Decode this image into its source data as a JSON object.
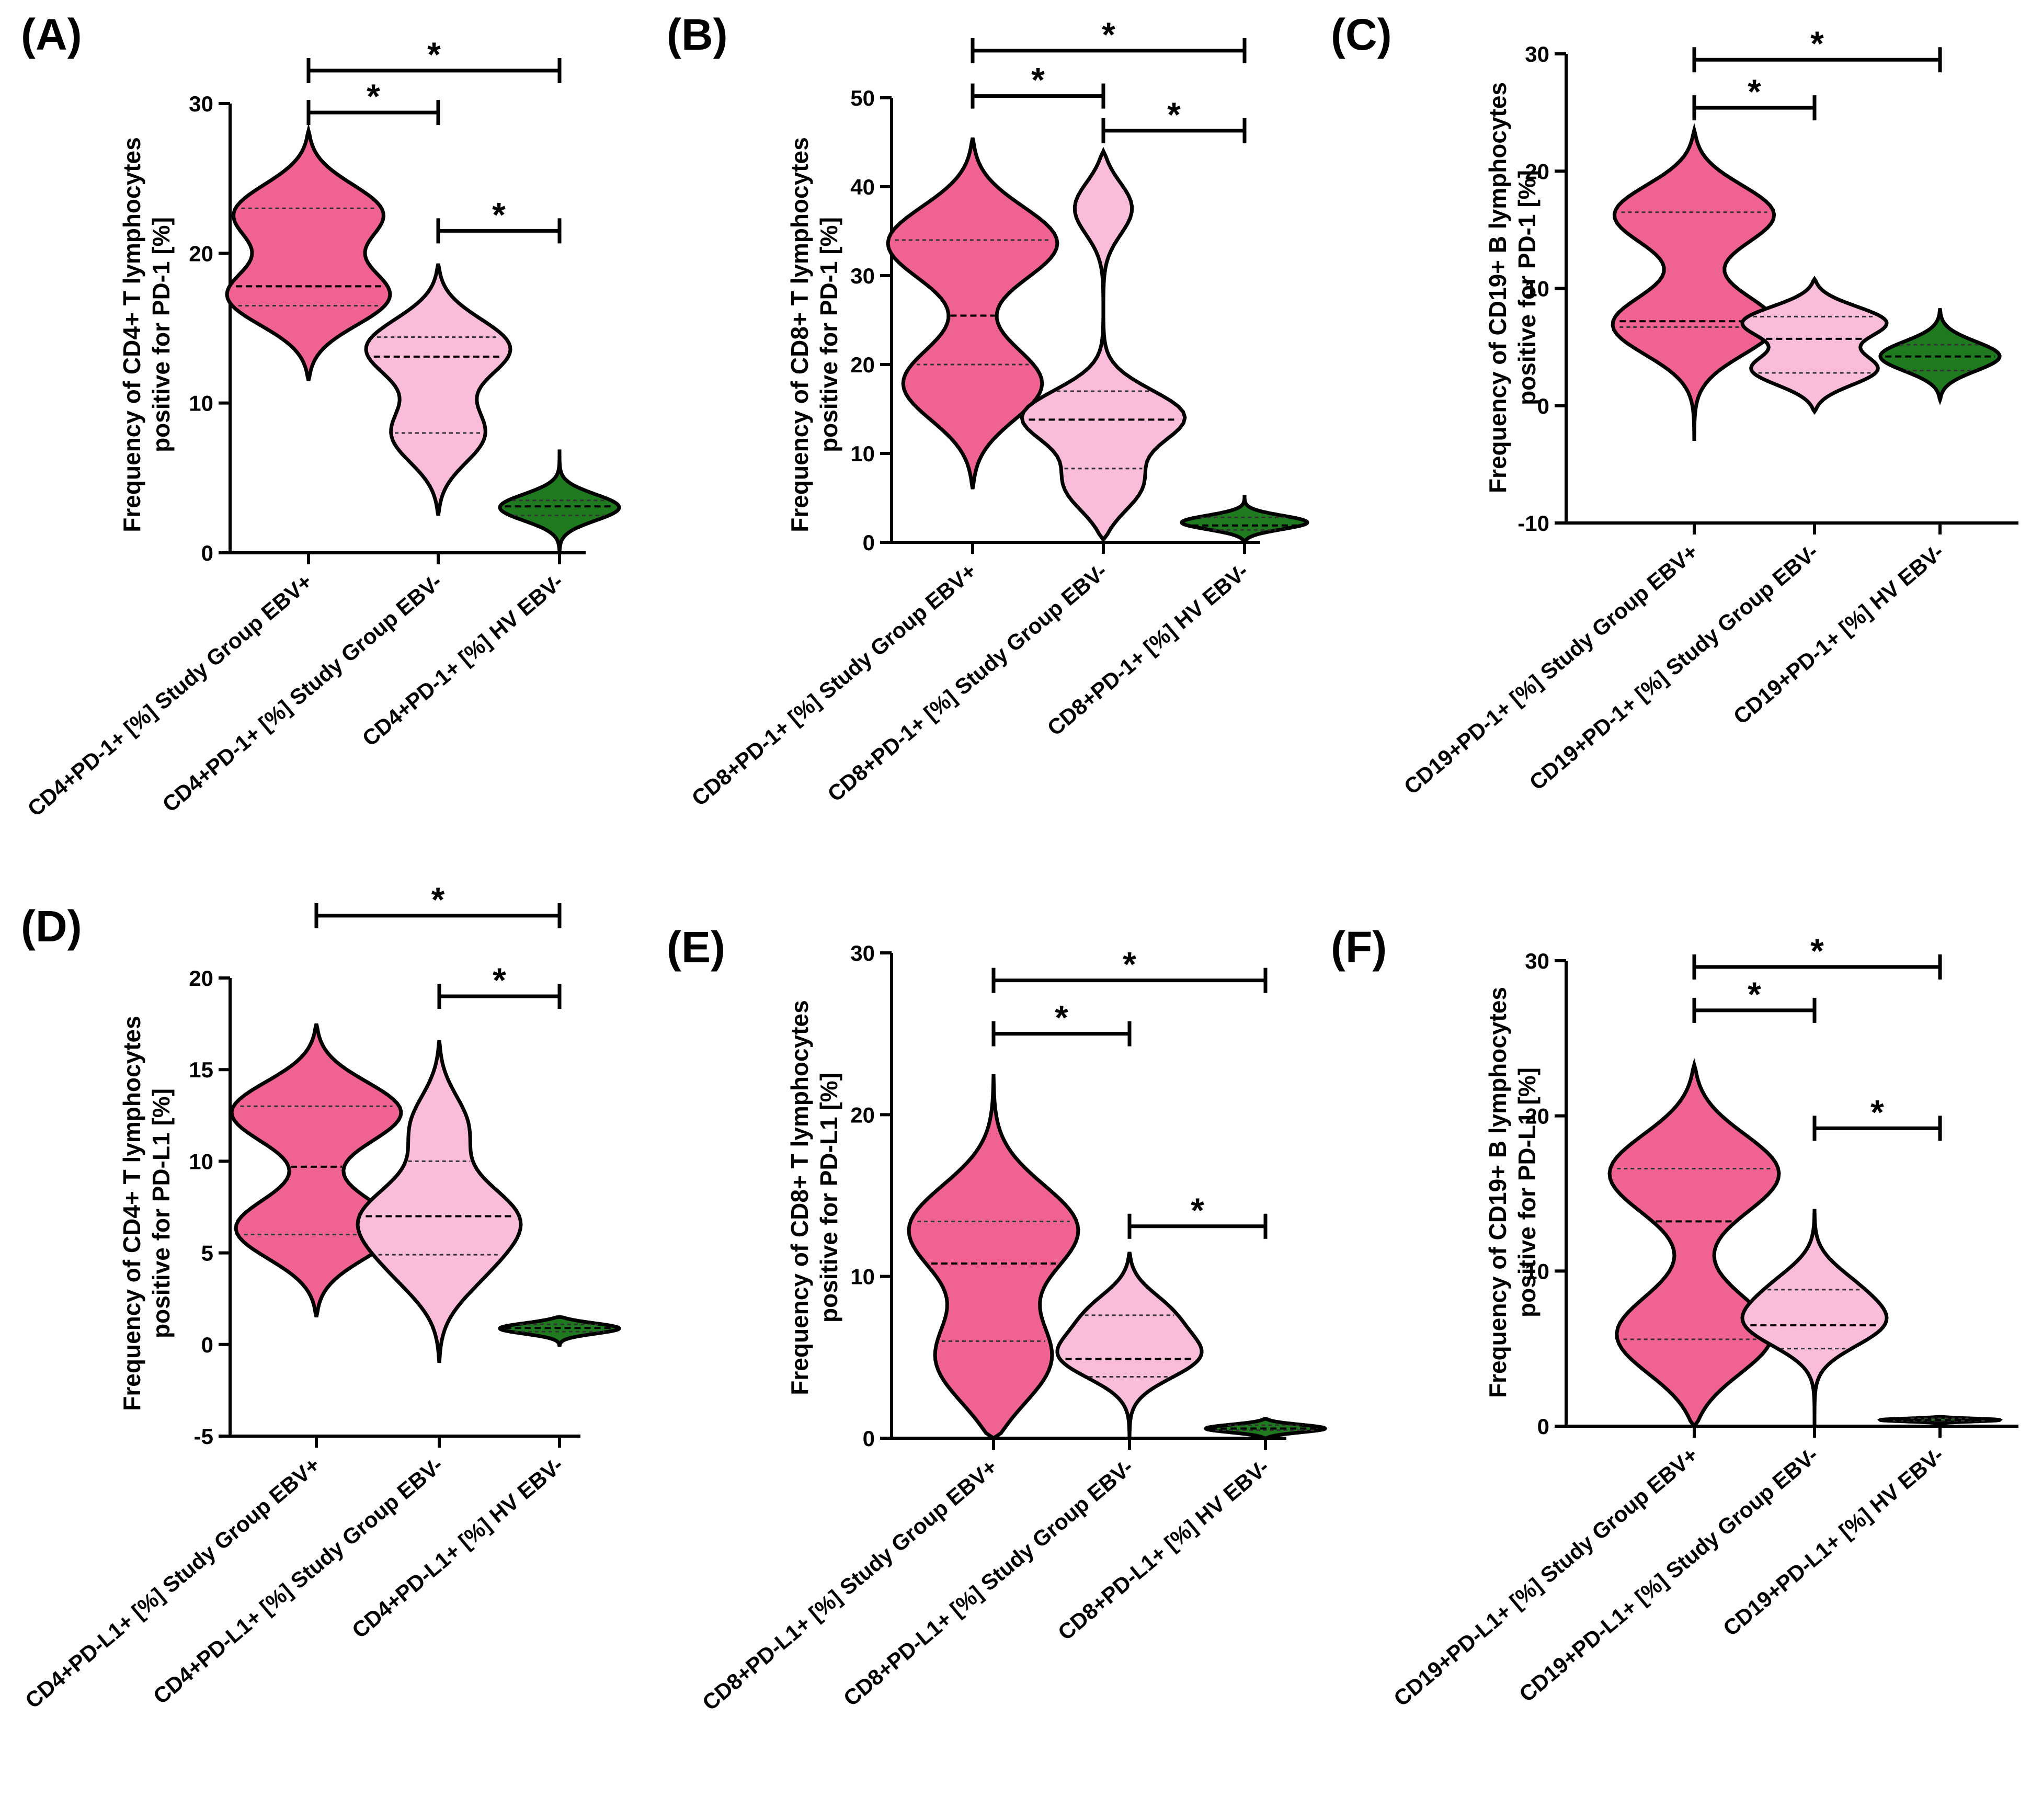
{
  "colors": {
    "ebv_pos": "#f06292",
    "ebv_neg": "#f9bdd9",
    "hv": "#1f7a1f",
    "line": "#000000"
  },
  "chart_data": [
    {
      "type": "violin",
      "id": "A",
      "panel_label": "(A)",
      "ylabel_line1": "Frequency of CD4+ T lymphocytes",
      "ylabel_line2": "positive for PD-1 [%]",
      "ylim": [
        0,
        30
      ],
      "yticks": [
        0,
        10,
        20,
        30
      ],
      "categories": [
        "CD4+PD-1+ [%] Study Group EBV+",
        "CD4+PD-1+ [%] Study Group EBV-",
        "CD4+PD-1+ [%] HV EBV-"
      ],
      "violins": [
        {
          "min": 11.5,
          "max": 28.2,
          "q1": 16.5,
          "median": 17.8,
          "q3": 23.0,
          "max_half_width": 2.6,
          "peaks": [
            [
              17.0,
              1.0
            ],
            [
              22.8,
              0.92
            ]
          ],
          "sigma": 2.0
        },
        {
          "min": 2.5,
          "max": 19.3,
          "q1": 8.0,
          "median": 13.1,
          "q3": 14.4,
          "max_half_width": 2.3,
          "peaks": [
            [
              13.8,
              1.0
            ],
            [
              7.8,
              0.65
            ]
          ],
          "sigma": 2.0
        },
        {
          "min": 0.1,
          "max": 6.9,
          "q1": 2.5,
          "median": 3.1,
          "q3": 3.5,
          "max_half_width": 1.9,
          "peaks": [
            [
              3.0,
              1.0
            ]
          ],
          "sigma": 0.9
        }
      ],
      "significance": [
        {
          "from": 0,
          "to": 2,
          "value": 32.2,
          "label": "*"
        },
        {
          "from": 0,
          "to": 1,
          "value": 29.4,
          "label": "*"
        },
        {
          "from": 1,
          "to": 2,
          "value": 21.5,
          "label": "*"
        }
      ]
    },
    {
      "type": "violin",
      "id": "B",
      "panel_label": "(B)",
      "ylabel_line1": "Frequency of CD8+ T lymphocytes",
      "ylabel_line2": "positive for PD-1 [%]",
      "ylim": [
        0,
        50
      ],
      "yticks": [
        0,
        10,
        20,
        30,
        40,
        50
      ],
      "categories": [
        "CD8+PD-1+ [%] Study Group EBV+",
        "CD8+PD-1+ [%] Study Group EBV-",
        "CD8+PD-1+ [%] HV EBV-"
      ],
      "violins": [
        {
          "min": 6.0,
          "max": 45.5,
          "q1": 20.0,
          "median": 25.5,
          "q3": 34.0,
          "max_half_width": 2.7,
          "peaks": [
            [
              34.0,
              1.0
            ],
            [
              17.5,
              0.82
            ]
          ],
          "sigma": 4.2
        },
        {
          "min": 0.3,
          "max": 44.0,
          "q1": 8.3,
          "median": 13.8,
          "q3": 17.0,
          "max_half_width": 2.6,
          "peaks": [
            [
              14.0,
              1.0
            ],
            [
              6.0,
              0.6
            ],
            [
              38.0,
              0.45
            ]
          ],
          "sigma": 3.0
        },
        {
          "min": 0.1,
          "max": 5.3,
          "q1": 1.4,
          "median": 1.9,
          "q3": 2.8,
          "max_half_width": 2.0,
          "peaks": [
            [
              2.2,
              1.0
            ]
          ],
          "sigma": 0.8
        }
      ],
      "significance": [
        {
          "from": 0,
          "to": 2,
          "value": 55.3,
          "label": "*"
        },
        {
          "from": 0,
          "to": 1,
          "value": 50.2,
          "label": "*"
        },
        {
          "from": 1,
          "to": 2,
          "value": 46.3,
          "label": "*"
        }
      ]
    },
    {
      "type": "violin",
      "id": "C",
      "panel_label": "(C)",
      "ylabel_line1": "Frequency of CD19+ B lymphocytes",
      "ylabel_line2": "positive for PD-1 [%]",
      "ylim": [
        -10,
        30
      ],
      "yticks": [
        -10,
        0,
        10,
        20,
        30
      ],
      "categories": [
        "CD19+PD-1+ [%] Study Group EBV+",
        "CD19+PD-1+ [%] Study Group EBV-",
        "CD19+PD-1+ [%] HV EBV-"
      ],
      "violins": [
        {
          "min": -3.0,
          "max": 23.5,
          "q1": 6.7,
          "median": 7.2,
          "q3": 16.5,
          "max_half_width": 2.6,
          "peaks": [
            [
              16.5,
              1.0
            ],
            [
              6.8,
              0.95
            ]
          ],
          "sigma": 2.6
        },
        {
          "min": -0.5,
          "max": 10.8,
          "q1": 2.8,
          "median": 5.7,
          "q3": 7.6,
          "max_half_width": 2.3,
          "peaks": [
            [
              7.2,
              1.0
            ],
            [
              3.0,
              0.88
            ]
          ],
          "sigma": 1.4
        },
        {
          "min": 0.5,
          "max": 8.3,
          "q1": 3.0,
          "median": 4.2,
          "q3": 5.2,
          "max_half_width": 1.9,
          "peaks": [
            [
              4.2,
              1.0
            ]
          ],
          "sigma": 1.3
        }
      ],
      "significance": [
        {
          "from": 0,
          "to": 2,
          "value": 29.5,
          "label": "*"
        },
        {
          "from": 0,
          "to": 1,
          "value": 25.4,
          "label": "*"
        }
      ]
    },
    {
      "type": "violin",
      "id": "D",
      "panel_label": "(D)",
      "ylabel_line1": "Frequency of CD4+ T lymphocytes",
      "ylabel_line2": "positive for PD-L1 [%]",
      "ylim": [
        -5,
        20
      ],
      "yticks": [
        -5,
        0,
        5,
        10,
        15,
        20
      ],
      "categories": [
        "CD4+PD-L1+ [%] Study Group EBV+",
        "CD4+PD-L1+ [%] Study Group EBV-",
        "CD4+PD-L1+ [%] HV EBV-"
      ],
      "violins": [
        {
          "min": 1.5,
          "max": 17.5,
          "q1": 6.0,
          "median": 9.7,
          "q3": 13.0,
          "max_half_width": 2.7,
          "peaks": [
            [
              12.8,
              1.0
            ],
            [
              6.2,
              0.95
            ]
          ],
          "sigma": 1.7
        },
        {
          "min": -1.0,
          "max": 16.6,
          "q1": 4.9,
          "median": 7.0,
          "q3": 10.0,
          "max_half_width": 2.6,
          "peaks": [
            [
              7.0,
              1.0
            ],
            [
              4.0,
              0.55
            ],
            [
              12.0,
              0.45
            ]
          ],
          "sigma": 1.8
        },
        {
          "min": -0.1,
          "max": 1.5,
          "q1": 0.7,
          "median": 0.9,
          "q3": 1.1,
          "max_half_width": 1.9,
          "peaks": [
            [
              0.9,
              1.0
            ]
          ],
          "sigma": 0.3
        }
      ],
      "significance": [
        {
          "from": 0,
          "to": 2,
          "value": 23.4,
          "label": "*"
        },
        {
          "from": 1,
          "to": 2,
          "value": 19.0,
          "label": "*"
        }
      ]
    },
    {
      "type": "violin",
      "id": "E",
      "panel_label": "(E)",
      "ylabel_line1": "Frequency of CD8+ T lymphocytes",
      "ylabel_line2": "positive for PD-L1 [%]",
      "ylim": [
        0,
        30
      ],
      "yticks": [
        0,
        10,
        20,
        30
      ],
      "categories": [
        "CD8+PD-L1+ [%] Study Group EBV+",
        "CD8+PD-L1+ [%] Study Group EBV-",
        "CD8+PD-L1+ [%] HV EBV-"
      ],
      "violins": [
        {
          "min": 0.0,
          "max": 22.5,
          "q1": 6.0,
          "median": 10.8,
          "q3": 13.4,
          "max_half_width": 2.7,
          "peaks": [
            [
              13.0,
              1.0
            ],
            [
              4.5,
              0.8
            ]
          ],
          "sigma": 2.8
        },
        {
          "min": 0.0,
          "max": 11.5,
          "q1": 3.8,
          "median": 4.9,
          "q3": 7.6,
          "max_half_width": 2.3,
          "peaks": [
            [
              5.0,
              1.0
            ],
            [
              7.8,
              0.6
            ]
          ],
          "sigma": 1.4
        },
        {
          "min": 0.0,
          "max": 1.2,
          "q1": 0.5,
          "median": 0.6,
          "q3": 0.8,
          "max_half_width": 1.9,
          "peaks": [
            [
              0.6,
              1.0
            ]
          ],
          "sigma": 0.25
        }
      ],
      "significance": [
        {
          "from": 0,
          "to": 2,
          "value": 28.3,
          "label": "*"
        },
        {
          "from": 0,
          "to": 1,
          "value": 25.0,
          "label": "*"
        },
        {
          "from": 1,
          "to": 2,
          "value": 13.1,
          "label": "*"
        }
      ]
    },
    {
      "type": "violin",
      "id": "F",
      "panel_label": "(F)",
      "ylabel_line1": "Frequency of CD19+ B lymphocytes",
      "ylabel_line2": "positive for PD-L1 [%]",
      "ylim": [
        0,
        30
      ],
      "yticks": [
        0,
        10,
        20,
        30
      ],
      "categories": [
        "CD19+PD-L1+ [%] Study Group EBV+",
        "CD19+PD-L1+ [%] Study Group EBV-",
        "CD19+PD-L1+ [%] HV EBV-"
      ],
      "violins": [
        {
          "min": 0.0,
          "max": 23.3,
          "q1": 5.6,
          "median": 13.2,
          "q3": 16.6,
          "max_half_width": 2.7,
          "peaks": [
            [
              16.5,
              1.0
            ],
            [
              5.6,
              0.96
            ]
          ],
          "sigma": 2.6
        },
        {
          "min": 0.0,
          "max": 14.0,
          "q1": 5.0,
          "median": 6.5,
          "q3": 8.8,
          "max_half_width": 2.3,
          "peaks": [
            [
              6.5,
              1.0
            ],
            [
              9.0,
              0.55
            ]
          ],
          "sigma": 1.5
        },
        {
          "min": 0.2,
          "max": 0.6,
          "q1": 0.35,
          "median": 0.4,
          "q3": 0.5,
          "max_half_width": 1.9,
          "peaks": [
            [
              0.4,
              1.0
            ]
          ],
          "sigma": 0.1
        }
      ],
      "significance": [
        {
          "from": 0,
          "to": 2,
          "value": 29.6,
          "label": "*"
        },
        {
          "from": 0,
          "to": 1,
          "value": 26.8,
          "label": "*"
        },
        {
          "from": 1,
          "to": 2,
          "value": 19.2,
          "label": "*"
        }
      ]
    }
  ]
}
